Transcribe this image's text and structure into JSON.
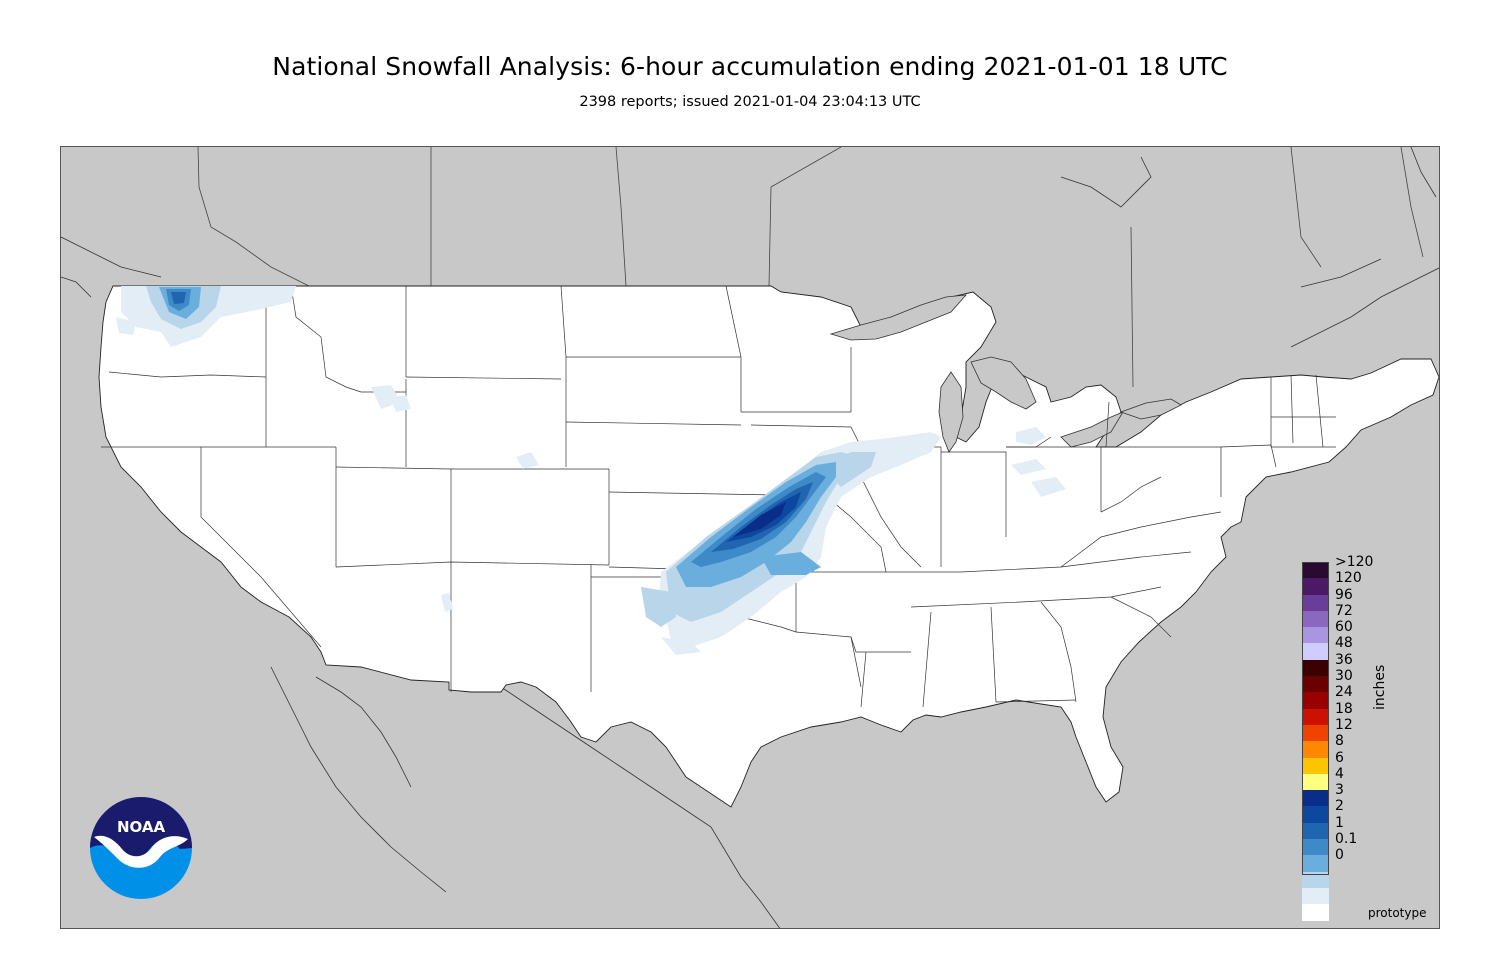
{
  "title": "National Snowfall Analysis: 6-hour accumulation ending 2021-01-01 18 UTC",
  "subtitle": "2398 reports; issued 2021-01-04 23:04:13 UTC",
  "legend": {
    "units": "inches",
    "entries": [
      {
        "label": ">120",
        "color": "#2a0a30"
      },
      {
        "label": "120",
        "color": "#4b1a66"
      },
      {
        "label": "96",
        "color": "#6a3d9a"
      },
      {
        "label": "72",
        "color": "#8a68c0"
      },
      {
        "label": "60",
        "color": "#a996e0"
      },
      {
        "label": "48",
        "color": "#cfcdfb"
      },
      {
        "label": "36",
        "color": "#3b0000"
      },
      {
        "label": "30",
        "color": "#6b0000"
      },
      {
        "label": "24",
        "color": "#9b0000"
      },
      {
        "label": "18",
        "color": "#cc1100"
      },
      {
        "label": "12",
        "color": "#ee4400"
      },
      {
        "label": "8",
        "color": "#ff8800"
      },
      {
        "label": "6",
        "color": "#ffc400"
      },
      {
        "label": "4",
        "color": "#ffff80"
      },
      {
        "label": "3",
        "color": "#0a2d8a"
      },
      {
        "label": "2",
        "color": "#0c47a0"
      },
      {
        "label": "1",
        "color": "#1f65b0"
      },
      {
        "label": "0.1",
        "color": "#3e89c8"
      },
      {
        "label": "0",
        "color": "#6aaede"
      },
      {
        "label": "",
        "color": "#b8d5ea"
      },
      {
        "label": "",
        "color": "#e3edf6"
      },
      {
        "label": "",
        "color": "#ffffff"
      }
    ]
  },
  "logo": {
    "text": "NOAA",
    "icon": "noaa-logo"
  },
  "footer_note": "prototype",
  "colors": {
    "ocean_background": "#c8c8c8",
    "land": "#ffffff",
    "snow_light": "#e3edf6",
    "snow_01": "#b8d5ea",
    "snow_1": "#6aaede",
    "snow_2": "#3e89c8",
    "snow_3": "#1f65b0",
    "snow_4": "#0c47a0",
    "snow_6": "#0a2d8a"
  }
}
